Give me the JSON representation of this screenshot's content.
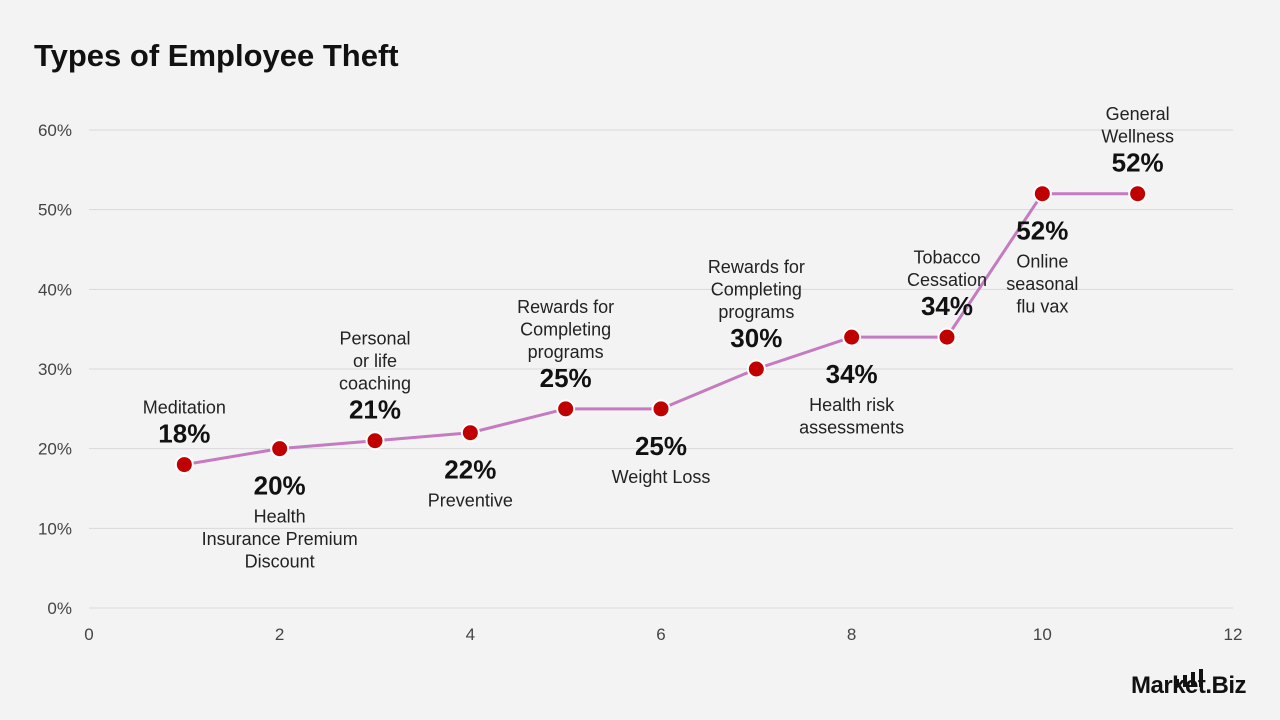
{
  "page": {
    "title": "Types of Employee Theft",
    "logo_text": "Market.Biz"
  },
  "colors": {
    "background": "#f3f3f3",
    "line": "#c57bc0",
    "marker": "#c00000",
    "marker_stroke": "#ffffff",
    "grid": "#d9d9d9"
  },
  "chart_data": {
    "type": "line",
    "title": "Types of Employee Theft",
    "xlabel": "",
    "ylabel": "",
    "xlim": [
      0,
      12
    ],
    "ylim": [
      0,
      0.6
    ],
    "xticks": [
      0,
      2,
      4,
      6,
      8,
      10,
      12
    ],
    "yticks": [
      0,
      0.1,
      0.2,
      0.3,
      0.4,
      0.5,
      0.6
    ],
    "ytick_labels": [
      "0%",
      "10%",
      "20%",
      "30%",
      "40%",
      "50%",
      "60%"
    ],
    "grid": true,
    "legend": "none",
    "points": [
      {
        "x": 1,
        "y": 0.18,
        "name": "Meditation",
        "value_label": "18%",
        "label_side": "above"
      },
      {
        "x": 2,
        "y": 0.2,
        "name": "Health Insurance Premium Discount",
        "value_label": "20%",
        "label_side": "below"
      },
      {
        "x": 3,
        "y": 0.21,
        "name": "Personal or life coaching",
        "value_label": "21%",
        "label_side": "above"
      },
      {
        "x": 4,
        "y": 0.22,
        "name": "Preventive",
        "value_label": "22%",
        "label_side": "below"
      },
      {
        "x": 5,
        "y": 0.25,
        "name": "Rewards for Completing programs",
        "value_label": "25%",
        "label_side": "above"
      },
      {
        "x": 6,
        "y": 0.25,
        "name": "Weight Loss",
        "value_label": "25%",
        "label_side": "below"
      },
      {
        "x": 7,
        "y": 0.3,
        "name": "Rewards for Completing programs",
        "value_label": "30%",
        "label_side": "above"
      },
      {
        "x": 8,
        "y": 0.34,
        "name": "Health risk assessments",
        "value_label": "34%",
        "label_side": "below"
      },
      {
        "x": 9,
        "y": 0.34,
        "name": "Tobacco Cessation",
        "value_label": "34%",
        "label_side": "above"
      },
      {
        "x": 10,
        "y": 0.52,
        "name": "Online seasonal flu vax",
        "value_label": "52%",
        "label_side": "below"
      },
      {
        "x": 11,
        "y": 0.52,
        "name": "General Wellness",
        "value_label": "52%",
        "label_side": "above"
      }
    ]
  }
}
